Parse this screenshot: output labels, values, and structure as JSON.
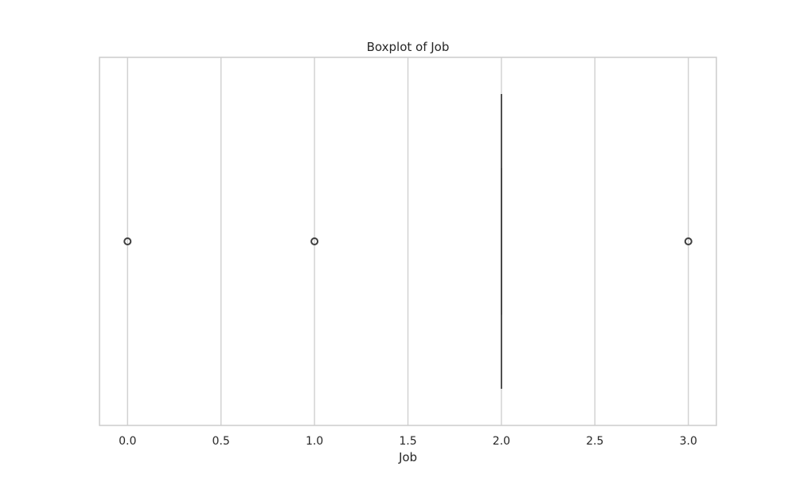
{
  "chart_data": {
    "type": "box",
    "title": "Boxplot of Job",
    "xlabel": "Job",
    "ylabel": "",
    "orientation": "horizontal",
    "xlim": [
      -0.15,
      3.15
    ],
    "ticks": [
      0.0,
      0.5,
      1.0,
      1.5,
      2.0,
      2.5,
      3.0
    ],
    "tick_labels": [
      "0.0",
      "0.5",
      "1.0",
      "1.5",
      "2.0",
      "2.5",
      "3.0"
    ],
    "grid": true,
    "box": {
      "whisker_low": 2.0,
      "q1": 2.0,
      "median": 2.0,
      "q3": 2.0,
      "whisker_high": 2.0,
      "outliers": [
        0.0,
        1.0,
        3.0
      ]
    },
    "colors": {
      "grid": "#cccccc",
      "frame": "#cccccc",
      "box_line": "#3f3f3f",
      "text": "#262626"
    }
  }
}
